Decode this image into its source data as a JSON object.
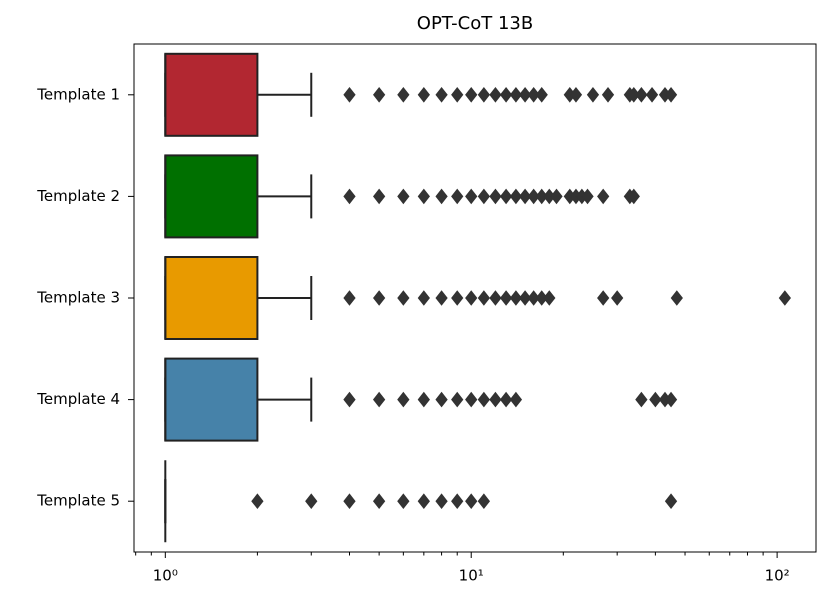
{
  "chart_data": {
    "type": "boxplot",
    "title": "OPT-CoT 13B",
    "orientation": "horizontal",
    "xscale": "log",
    "minor_ticks": true,
    "xlim": [
      0.79,
      134
    ],
    "xticks": [
      {
        "value": 1,
        "label": "10⁰"
      },
      {
        "value": 10,
        "label": "10¹"
      },
      {
        "value": 100,
        "label": "10²"
      }
    ],
    "boxes": [
      {
        "name": "Template 1",
        "color": "#b22731",
        "whislo": 1,
        "q1": 1,
        "median": 1,
        "q3": 2,
        "whishi": 3,
        "fliers": [
          4,
          5,
          6,
          7,
          8,
          9,
          10,
          11,
          12,
          13,
          14,
          15,
          16,
          17,
          21,
          22,
          25,
          28,
          33,
          34,
          36,
          39,
          43,
          45
        ]
      },
      {
        "name": "Template 2",
        "color": "#007000",
        "whislo": 1,
        "q1": 1,
        "median": 1,
        "q3": 2,
        "whishi": 3,
        "fliers": [
          4,
          5,
          6,
          7,
          8,
          9,
          10,
          11,
          12,
          13,
          14,
          15,
          16,
          17,
          18,
          19,
          21,
          22,
          23,
          24,
          27,
          33,
          34
        ]
      },
      {
        "name": "Template 3",
        "color": "#e89a00",
        "whislo": 1,
        "q1": 1,
        "median": 1,
        "q3": 2,
        "whishi": 3,
        "fliers": [
          4,
          5,
          6,
          7,
          8,
          9,
          10,
          11,
          12,
          13,
          14,
          15,
          16,
          17,
          18,
          27,
          30,
          47,
          106
        ]
      },
      {
        "name": "Template 4",
        "color": "#4682a9",
        "whislo": 1,
        "q1": 1,
        "median": 1,
        "q3": 2,
        "whishi": 3,
        "fliers": [
          4,
          5,
          6,
          7,
          8,
          9,
          10,
          11,
          12,
          13,
          14,
          36,
          40,
          43,
          45
        ]
      },
      {
        "name": "Template 5",
        "whislo": 1,
        "q1": 1,
        "median": 1,
        "q3": 1,
        "whishi": 1,
        "fliers": [
          2,
          3,
          4,
          5,
          6,
          7,
          8,
          9,
          10,
          11,
          45
        ]
      }
    ]
  }
}
